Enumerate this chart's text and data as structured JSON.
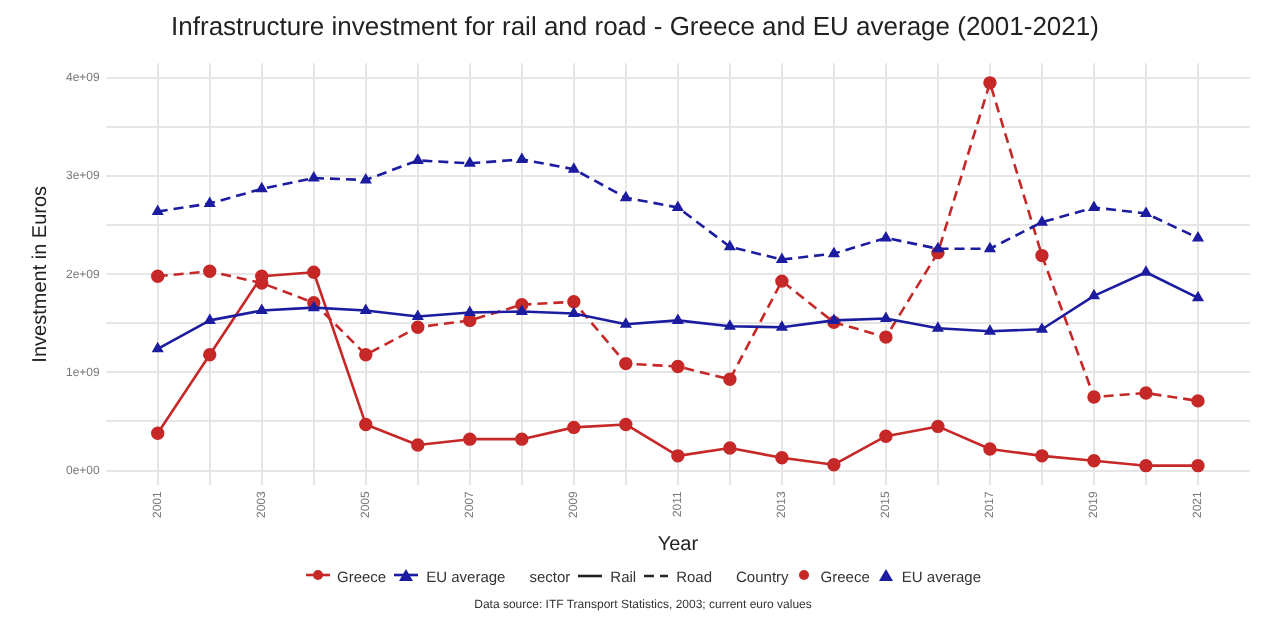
{
  "chart_data": {
    "type": "line",
    "title": "Infrastructure investment for rail and road - Greece and EU average (2001-2021)",
    "xlabel": "Year",
    "ylabel": "Investment in Euros",
    "x": [
      2001,
      2002,
      2003,
      2004,
      2005,
      2006,
      2007,
      2008,
      2009,
      2010,
      2011,
      2012,
      2013,
      2014,
      2015,
      2016,
      2017,
      2018,
      2019,
      2020,
      2021
    ],
    "series": [
      {
        "name": "Greece",
        "color": "#c62828",
        "marker": "circle",
        "line_style": "solid",
        "values": [
          380000000,
          1180000000,
          1980000000,
          2020000000,
          470000000,
          260000000,
          320000000,
          320000000,
          440000000,
          470000000,
          150000000,
          230000000,
          130000000,
          60000000,
          350000000,
          450000000,
          220000000,
          150000000,
          100000000,
          50000000,
          50000000
        ]
      },
      {
        "name": "Greece",
        "color": "#c62828",
        "marker": "circle",
        "line_style": "dashed",
        "values": [
          1980000000,
          2030000000,
          1910000000,
          1710000000,
          1180000000,
          1460000000,
          1530000000,
          1690000000,
          1720000000,
          1090000000,
          1060000000,
          930000000,
          1930000000,
          1510000000,
          1360000000,
          2220000000,
          3950000000,
          2190000000,
          750000000,
          790000000,
          710000000
        ]
      },
      {
        "name": "EU average",
        "color": "#1c1ca0",
        "marker": "triangle",
        "line_style": "solid",
        "values": [
          1240000000,
          1530000000,
          1630000000,
          1660000000,
          1630000000,
          1570000000,
          1610000000,
          1620000000,
          1600000000,
          1490000000,
          1530000000,
          1470000000,
          1460000000,
          1530000000,
          1550000000,
          1450000000,
          1420000000,
          1440000000,
          1780000000,
          2020000000,
          1760000000
        ]
      },
      {
        "name": "EU average",
        "color": "#1c1ca0",
        "marker": "triangle",
        "line_style": "dashed",
        "values": [
          2640000000,
          2720000000,
          2870000000,
          2980000000,
          2960000000,
          3160000000,
          3130000000,
          3170000000,
          3070000000,
          2780000000,
          2680000000,
          2280000000,
          2150000000,
          2210000000,
          2370000000,
          2260000000,
          2260000000,
          2530000000,
          2680000000,
          2620000000,
          2370000000
        ]
      }
    ],
    "xlim": [
      2000,
      2022
    ],
    "xticks": [
      2001,
      {
        "value": 2002,
        "label": null
      },
      2003,
      {
        "value": 2004,
        "label": null
      },
      2005,
      {
        "value": 2006,
        "label": null
      },
      2007,
      {
        "value": 2008,
        "label": null
      },
      2009,
      {
        "value": 2010,
        "label": null
      },
      2011,
      {
        "value": 2012,
        "label": null
      },
      2013,
      {
        "value": 2014,
        "label": null
      },
      2015,
      {
        "value": 2016,
        "label": null
      },
      2017,
      {
        "value": 2018,
        "label": null
      },
      2019,
      {
        "value": 2020,
        "label": null
      },
      2021
    ],
    "ylim": [
      -150000000,
      4150000000
    ],
    "yticks": [
      {
        "value": 0,
        "label": "0e+00"
      },
      {
        "value": 500000000,
        "label": null
      },
      {
        "value": 1000000000,
        "label": "1e+09"
      },
      {
        "value": 1500000000,
        "label": null
      },
      {
        "value": 2000000000,
        "label": "2e+09"
      },
      {
        "value": 2500000000,
        "label": null
      },
      {
        "value": 3000000000,
        "label": "3e+09"
      },
      {
        "value": 3500000000,
        "label": null
      },
      {
        "value": 4000000000,
        "label": "4e+09"
      }
    ],
    "grid": true,
    "legend": "bottom",
    "annotations": [
      "sector",
      "Rail",
      "Road",
      "Country",
      "Data source: ITF Transport Statistics, 2003; current euro values"
    ]
  }
}
